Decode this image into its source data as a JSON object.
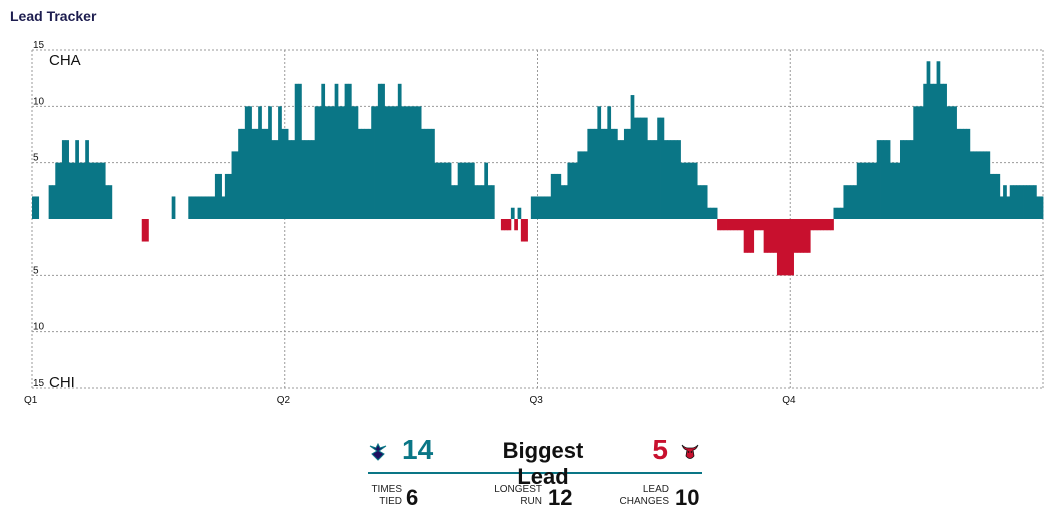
{
  "title": "Lead Tracker",
  "colors": {
    "cha": "#0a7686",
    "chi": "#c8102e",
    "grid": "#9a9a9a"
  },
  "chart_data": {
    "type": "bar",
    "team_top": "CHA",
    "team_bottom": "CHI",
    "ylim": [
      -15,
      15
    ],
    "ytick_labels": [
      "15",
      "10",
      "5",
      "5",
      "10",
      "15"
    ],
    "ytick_values": [
      15,
      10,
      5,
      -5,
      -10,
      -15
    ],
    "quarters": [
      "Q1",
      "Q2",
      "Q3",
      "Q4"
    ],
    "bins_per_quarter": 70,
    "values": [
      2,
      2,
      0,
      0,
      0,
      3,
      3,
      5,
      5,
      7,
      7,
      5,
      5,
      7,
      5,
      5,
      7,
      5,
      5,
      5,
      5,
      5,
      3,
      3,
      0,
      0,
      0,
      0,
      0,
      0,
      0,
      0,
      0,
      -2,
      -2,
      0,
      0,
      0,
      0,
      0,
      0,
      0,
      2,
      0,
      0,
      0,
      0,
      2,
      2,
      2,
      2,
      2,
      2,
      2,
      2,
      4,
      4,
      2,
      4,
      4,
      6,
      6,
      8,
      8,
      10,
      10,
      8,
      8,
      10,
      8,
      8,
      10,
      7,
      7,
      10,
      8,
      8,
      7,
      7,
      12,
      12,
      7,
      7,
      7,
      7,
      10,
      10,
      12,
      10,
      10,
      10,
      12,
      10,
      10,
      12,
      12,
      10,
      10,
      8,
      8,
      8,
      8,
      10,
      10,
      12,
      12,
      10,
      10,
      10,
      10,
      12,
      10,
      10,
      10,
      10,
      10,
      10,
      8,
      8,
      8,
      8,
      5,
      5,
      5,
      5,
      5,
      3,
      3,
      5,
      5,
      5,
      5,
      5,
      3,
      3,
      3,
      5,
      3,
      3,
      0,
      0,
      -1,
      -1,
      -1,
      1,
      -1,
      1,
      -2,
      -2,
      0,
      2,
      2,
      2,
      2,
      2,
      2,
      4,
      4,
      4,
      3,
      3,
      5,
      5,
      5,
      6,
      6,
      6,
      8,
      8,
      8,
      10,
      8,
      8,
      10,
      8,
      8,
      7,
      7,
      8,
      8,
      11,
      9,
      9,
      9,
      9,
      7,
      7,
      7,
      9,
      9,
      7,
      7,
      7,
      7,
      7,
      5,
      5,
      5,
      5,
      5,
      3,
      3,
      3,
      1,
      1,
      1,
      -1,
      -1,
      -1,
      -1,
      -1,
      -1,
      -1,
      -1,
      -3,
      -3,
      -3,
      -1,
      -1,
      -1,
      -3,
      -3,
      -3,
      -3,
      -5,
      -5,
      -5,
      -5,
      -5,
      -3,
      -3,
      -3,
      -3,
      -3,
      -1,
      -1,
      -1,
      -1,
      -1,
      -1,
      -1,
      1,
      1,
      1,
      3,
      3,
      3,
      3,
      5,
      5,
      5,
      5,
      5,
      5,
      7,
      7,
      7,
      7,
      5,
      5,
      5,
      7,
      7,
      7,
      7,
      10,
      10,
      10,
      12,
      14,
      12,
      12,
      14,
      12,
      12,
      10,
      10,
      10,
      8,
      8,
      8,
      8,
      6,
      6,
      6,
      6,
      6,
      6,
      4,
      4,
      4,
      2,
      3,
      2,
      3,
      3,
      3,
      3,
      3,
      3,
      3,
      3,
      2,
      2
    ]
  },
  "stats": {
    "biggest_lead_label": "Biggest Lead",
    "cha_biggest_lead": "14",
    "chi_biggest_lead": "5",
    "cha_icon": "hornets-logo-icon",
    "chi_icon": "bulls-logo-icon",
    "times_tied_label_1": "TIMES",
    "times_tied_label_2": "TIED",
    "times_tied": "6",
    "longest_run_label_1": "LONGEST",
    "longest_run_label_2": "RUN",
    "longest_run": "12",
    "lead_changes_label_1": "LEAD",
    "lead_changes_label_2": "CHANGES",
    "lead_changes": "10"
  }
}
